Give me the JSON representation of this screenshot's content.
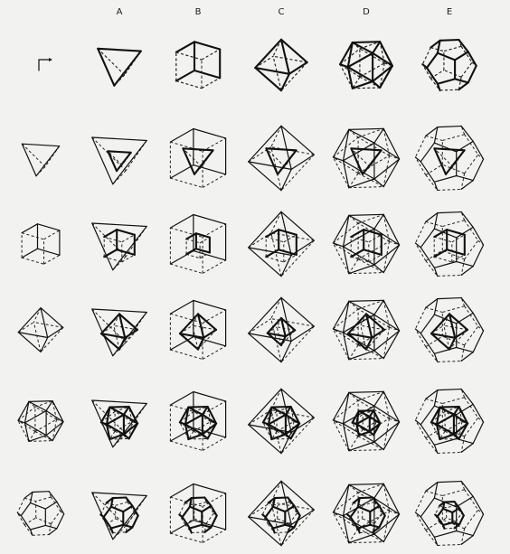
{
  "columns": [
    {
      "key": "A",
      "label": "A",
      "solid": "tetrahedron"
    },
    {
      "key": "B",
      "label": "B",
      "solid": "cube"
    },
    {
      "key": "C",
      "label": "C",
      "solid": "octahedron"
    },
    {
      "key": "D",
      "label": "D",
      "solid": "icosahedron"
    },
    {
      "key": "E",
      "label": "E",
      "solid": "dodecahedron"
    }
  ],
  "rows": [
    {
      "key": "r0",
      "solid": "axes-icon"
    },
    {
      "key": "r1",
      "solid": "tetrahedron"
    },
    {
      "key": "r2",
      "solid": "cube"
    },
    {
      "key": "r3",
      "solid": "octahedron"
    },
    {
      "key": "r4",
      "solid": "icosahedron"
    },
    {
      "key": "r5",
      "solid": "dodecahedron"
    }
  ],
  "colors": {
    "ink": "#111111",
    "paper": "#f2f2f0"
  }
}
